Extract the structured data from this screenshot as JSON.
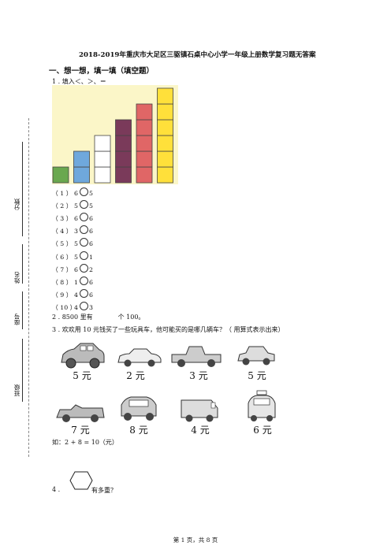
{
  "title": "2018-2019年重庆市大足区三驱镇石桌中心小学一年级上册数学复习题无答案",
  "section1": "一、想一想，填一填（填空题）",
  "q1": "1 .  填入＜、＞、＝",
  "chart_colors": [
    "#6aa84f",
    "#6fa8dc",
    "#ffffff",
    "#7a3a5a",
    "#e06666",
    "#ffe03a"
  ],
  "chart_counts": [
    1,
    2,
    3,
    4,
    5,
    6
  ],
  "comparisons": [
    {
      "n": "（ 1 ）",
      "a": "6",
      "b": "5"
    },
    {
      "n": "（ 2 ）",
      "a": "5",
      "b": "5"
    },
    {
      "n": "（ 3 ）",
      "a": "6",
      "b": "6"
    },
    {
      "n": "（ 4 ）",
      "a": "3",
      "b": "6"
    },
    {
      "n": "（ 5 ）",
      "a": "5",
      "b": "6"
    },
    {
      "n": "（ 6 ）",
      "a": "5",
      "b": "1"
    },
    {
      "n": "（ 7 ）",
      "a": "6",
      "b": "2"
    },
    {
      "n": "（ 8 ）",
      "a": "1",
      "b": "6"
    },
    {
      "n": "（ 9 ）",
      "a": "4",
      "b": "6"
    },
    {
      "n": "（ 10 ）",
      "a": "4",
      "b": "3"
    }
  ],
  "q2_pre": "2 .  8500 里有",
  "q2_post": "个 100。",
  "q3": "3 .  欢欢用 10 元钱买了一些玩具车，他可能买的是哪几辆车？（ 用算式表示出来）",
  "cars": [
    {
      "price": "5 元"
    },
    {
      "price": "2 元"
    },
    {
      "price": "3 元"
    },
    {
      "price": "5 元"
    },
    {
      "price": "7 元"
    },
    {
      "price": "8 元"
    },
    {
      "price": "4 元"
    },
    {
      "price": "6 元"
    }
  ],
  "example": "如：2 + 8 = 10（元）",
  "q4_pre": "4 .",
  "q4_post": "有多重？",
  "footer": "第 1 页，共 8 页",
  "margin": {
    "score": "分数",
    "name": "姓名",
    "seat": "座号",
    "class": "班级"
  }
}
